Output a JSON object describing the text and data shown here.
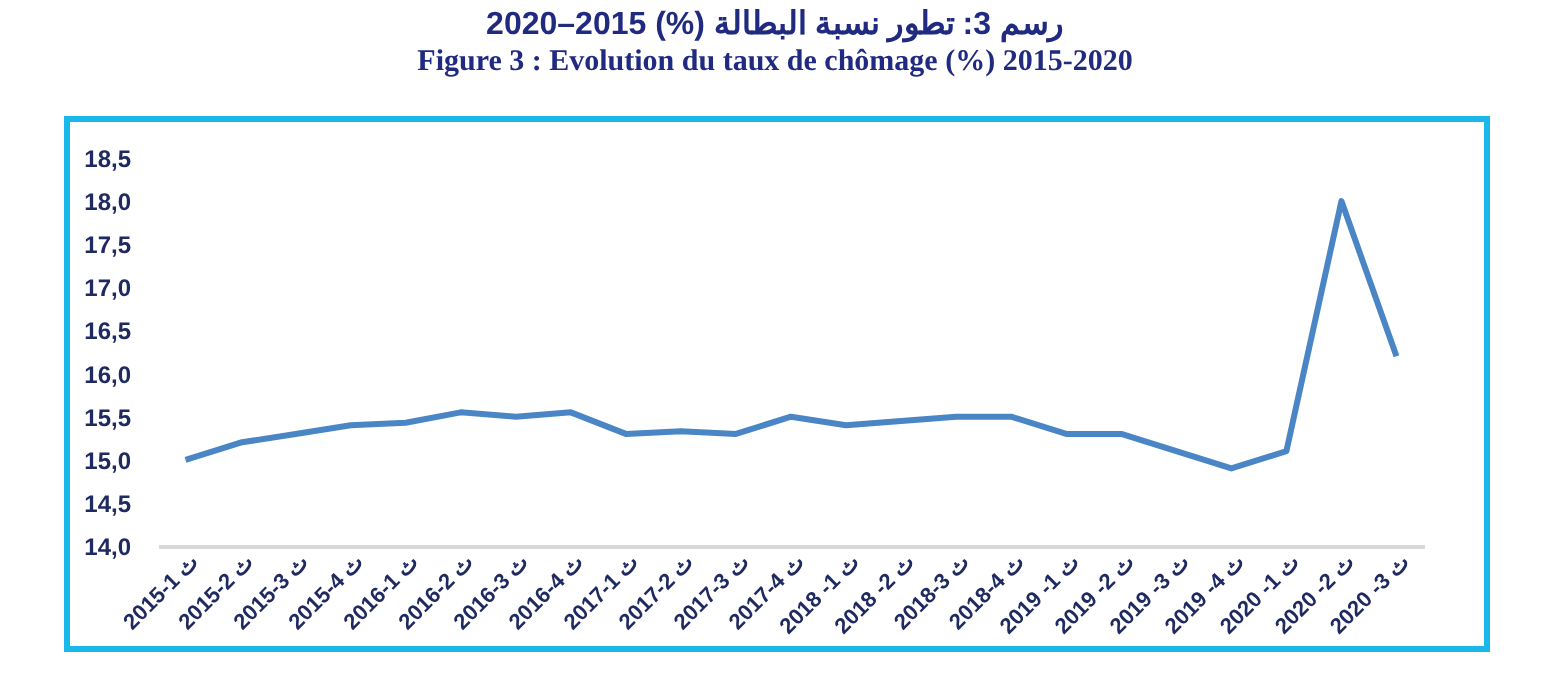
{
  "chart_data": {
    "type": "line",
    "title": "رسم 3: تطور نسبة البطالة (%) 2015–2020",
    "subtitle": "Figure 3 : Evolution du taux de chômage (%) 2015-2020",
    "categories": [
      "2015-1 ث",
      "2015-2 ث",
      "2015-3 ث",
      "2015-4 ث",
      "2016-1 ث",
      "2016-2 ث",
      "2016-3 ث",
      "2016-4 ث",
      "2017-1 ث",
      "2017-2 ث",
      "2017-3 ث",
      "2017-4 ث",
      "2018 -1 ث",
      "2018 -2 ث",
      "2018-3 ث",
      "2018-4 ث",
      "2019 -1 ث",
      "2019 -2 ث",
      "2019 -3 ث",
      "2019 -4 ث",
      "2020 -1 ث",
      "2020 -2 ث",
      "2020 -3 ث"
    ],
    "series": [
      {
        "color": "#4a86c5",
        "values": [
          15.0,
          15.2,
          15.3,
          15.4,
          15.43,
          15.55,
          15.5,
          15.55,
          15.3,
          15.33,
          15.3,
          15.5,
          15.4,
          15.45,
          15.5,
          15.5,
          15.3,
          15.3,
          15.1,
          14.9,
          15.1,
          18.0,
          16.2
        ]
      }
    ],
    "ylim": [
      14.0,
      18.5
    ],
    "yticks": [
      {
        "value": 14.0,
        "label": "14,0"
      },
      {
        "value": 14.5,
        "label": "14,5"
      },
      {
        "value": 15.0,
        "label": "15,0"
      },
      {
        "value": 15.5,
        "label": "15,5"
      },
      {
        "value": 16.0,
        "label": "16,0"
      },
      {
        "value": 16.5,
        "label": "16,5"
      },
      {
        "value": 17.0,
        "label": "17,0"
      },
      {
        "value": 17.5,
        "label": "17,5"
      },
      {
        "value": 18.0,
        "label": "18,0"
      },
      {
        "value": 18.5,
        "label": "18,5"
      }
    ],
    "grid": false,
    "marker": "none",
    "line_style": "solid"
  }
}
